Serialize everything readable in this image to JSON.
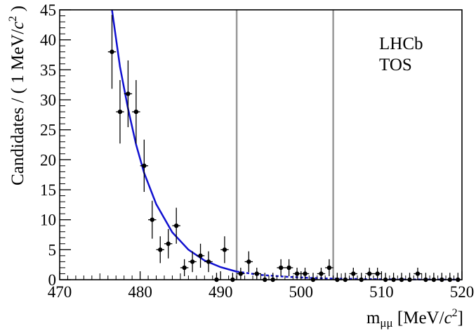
{
  "chart_data": {
    "type": "scatter",
    "title": "",
    "xlabel": "m",
    "xlabel_subscript": "μμ",
    "xlabel_unit": " [MeV/",
    "xlabel_unit_c": "c",
    "xlabel_unit_pow": "2",
    "xlabel_unit_close": "]",
    "ylabel": "Candidates / ( 1 MeV/",
    "ylabel_c": "c",
    "ylabel_pow": "2",
    "ylabel_close": " )",
    "xlim": [
      470,
      520
    ],
    "ylim": [
      0,
      45
    ],
    "x_ticks": [
      470,
      480,
      490,
      500,
      510,
      520
    ],
    "y_ticks": [
      0,
      5,
      10,
      15,
      20,
      25,
      30,
      35,
      40,
      45
    ],
    "annotations": [
      "LHCb",
      "TOS"
    ],
    "vertical_lines": [
      492,
      504
    ],
    "series": [
      {
        "kind": "data_points",
        "x": [
          476.5,
          477.5,
          478.5,
          479.5,
          480.5,
          481.5,
          482.5,
          483.5,
          484.5,
          485.5,
          486.5,
          487.5,
          488.5,
          489.5,
          490.5,
          491.5,
          492.5,
          493.5,
          494.5,
          495.5,
          496.5,
          497.5,
          498.5,
          499.5,
          500.5,
          501.5,
          502.5,
          503.5,
          504.5,
          505.5,
          506.5,
          507.5,
          508.5,
          509.5,
          510.5,
          511.5,
          512.5,
          513.5,
          514.5,
          515.5,
          516.5,
          517.5,
          518.5,
          519.5
        ],
        "y": [
          38,
          28,
          31,
          28,
          19,
          10,
          5,
          6,
          9,
          2,
          3,
          4,
          3,
          0,
          5,
          0,
          1,
          3,
          1,
          0,
          0,
          2,
          2,
          1,
          1,
          0,
          1,
          2,
          0,
          0,
          1,
          0,
          1,
          1,
          0,
          0,
          0,
          0,
          1,
          0,
          0,
          0,
          0,
          0
        ]
      },
      {
        "kind": "fit_curve",
        "model": "exponential",
        "x": [
          476.5,
          477.5,
          478.5,
          479.5,
          480.5,
          482,
          484,
          486,
          488,
          490,
          492
        ],
        "y": [
          45,
          35.5,
          28.5,
          22.5,
          17.8,
          12.6,
          7.9,
          5.0,
          3.2,
          2.1,
          1.35
        ]
      },
      {
        "kind": "fit_curve_dashed",
        "model": "exponential",
        "x": [
          492,
          495,
          498,
          501,
          504,
          510,
          515,
          520
        ],
        "y": [
          1.35,
          0.8,
          0.5,
          0.3,
          0.18,
          0.07,
          0.03,
          0.01
        ]
      }
    ],
    "colors": {
      "fit": "#1010d0",
      "points": "#000000",
      "vlines": "#999999",
      "frame": "#000000"
    }
  }
}
